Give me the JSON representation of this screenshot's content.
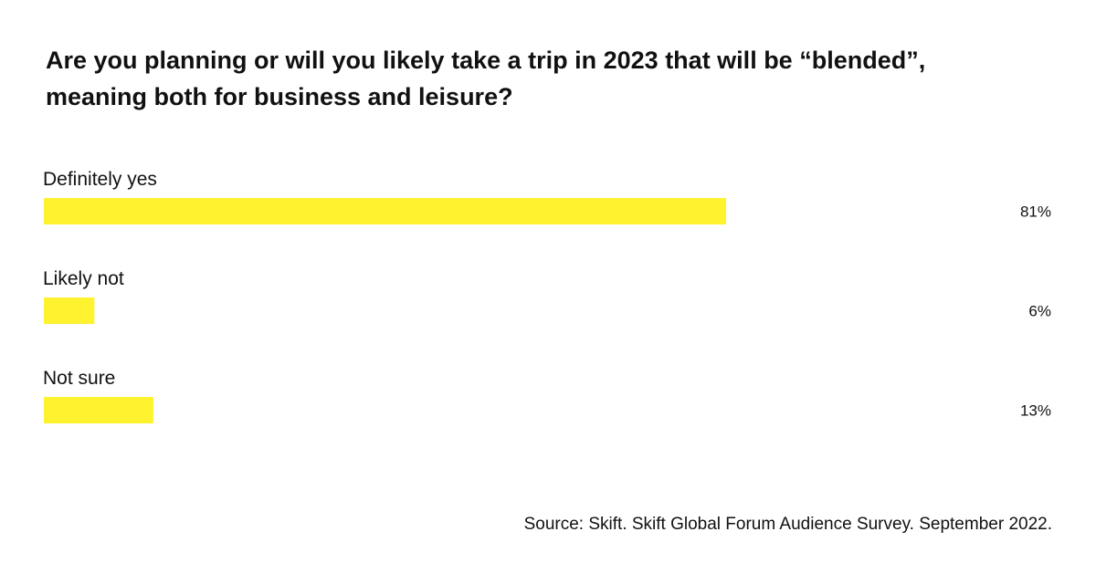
{
  "title_lines": [
    "Are you planning or will you likely take a trip in 2023 that will be “blended”,",
    "meaning both for business and leisure?"
  ],
  "source": "Source: Skift. Skift Global Forum Audience Survey. September 2022.",
  "colors": {
    "bar": "#fff22f",
    "text": "#111111",
    "background": "#ffffff"
  },
  "chart_data": {
    "type": "bar",
    "orientation": "horizontal",
    "categories": [
      "Definitely yes",
      "Likely not",
      "Not sure"
    ],
    "values": [
      81,
      6,
      13
    ],
    "value_labels": [
      "81%",
      "6%",
      "13%"
    ],
    "unit": "%",
    "xlim": [
      0,
      100
    ],
    "grid": false,
    "legend": "none"
  }
}
